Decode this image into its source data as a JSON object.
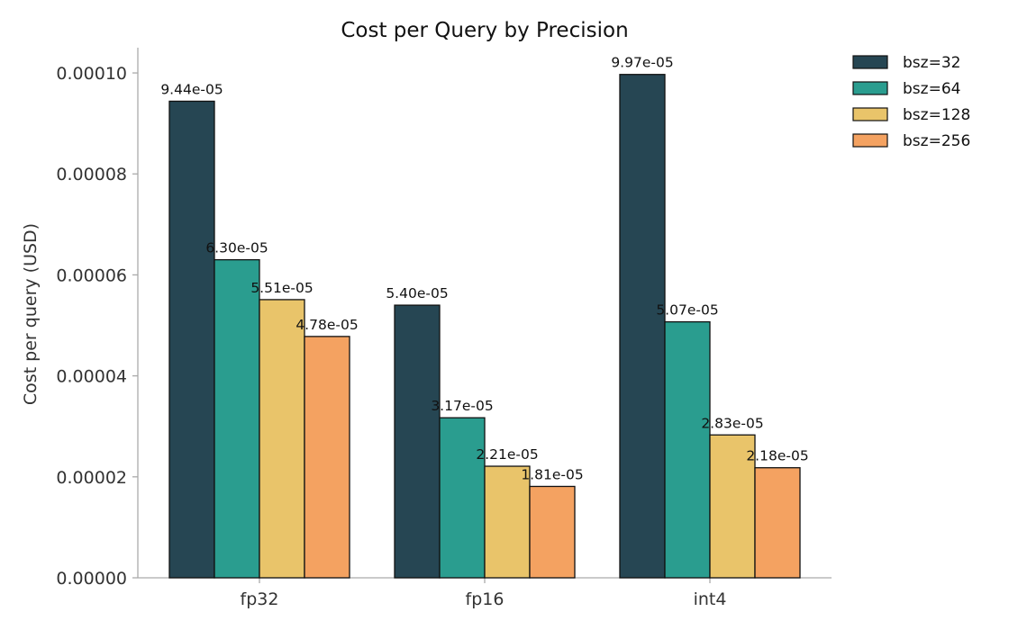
{
  "chart_data": {
    "type": "bar",
    "title": "Cost per Query by Precision",
    "xlabel": "",
    "ylabel": "Cost per query (USD)",
    "categories": [
      "fp32",
      "fp16",
      "int4"
    ],
    "ylim": [
      0,
      0.000105
    ],
    "yticks": [
      "0.00000",
      "0.00002",
      "0.00004",
      "0.00006",
      "0.00008",
      "0.00010"
    ],
    "ytick_values": [
      0,
      2e-05,
      4e-05,
      6e-05,
      8e-05,
      0.0001
    ],
    "grid": false,
    "legend_position": "top-right, outside plot",
    "series": [
      {
        "name": "bsz=32",
        "color": "#264653",
        "values": [
          9.44e-05,
          5.4e-05,
          9.97e-05
        ],
        "labels": [
          "9.44e-05",
          "5.40e-05",
          "9.97e-05"
        ]
      },
      {
        "name": "bsz=64",
        "color": "#2a9d8f",
        "values": [
          6.3e-05,
          3.17e-05,
          5.07e-05
        ],
        "labels": [
          "6.30e-05",
          "3.17e-05",
          "5.07e-05"
        ]
      },
      {
        "name": "bsz=128",
        "color": "#e9c46a",
        "values": [
          5.51e-05,
          2.21e-05,
          2.83e-05
        ],
        "labels": [
          "5.51e-05",
          "2.21e-05",
          "2.83e-05"
        ]
      },
      {
        "name": "bsz=256",
        "color": "#f4a261",
        "values": [
          4.78e-05,
          1.81e-05,
          2.18e-05
        ],
        "labels": [
          "4.78e-05",
          "1.81e-05",
          "2.18e-05"
        ]
      }
    ]
  }
}
